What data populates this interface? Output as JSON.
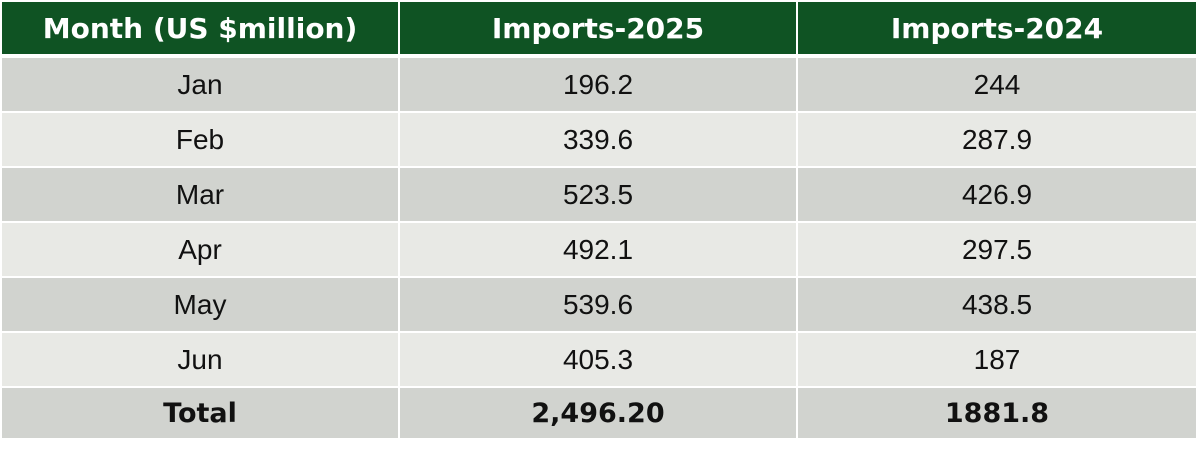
{
  "table": {
    "headers": [
      "Month (US $million)",
      "Imports-2025",
      "Imports-2024"
    ],
    "rows": [
      {
        "month": "Jan",
        "imports_2025": "196.2",
        "imports_2024": "244"
      },
      {
        "month": "Feb",
        "imports_2025": "339.6",
        "imports_2024": "287.9"
      },
      {
        "month": "Mar",
        "imports_2025": "523.5",
        "imports_2024": "426.9"
      },
      {
        "month": "Apr",
        "imports_2025": "492.1",
        "imports_2024": "297.5"
      },
      {
        "month": "May",
        "imports_2025": "539.6",
        "imports_2024": "438.5"
      },
      {
        "month": "Jun",
        "imports_2025": "405.3",
        "imports_2024": "187"
      }
    ],
    "total": {
      "label": "Total",
      "imports_2025": "2,496.20",
      "imports_2024": "1881.8"
    }
  },
  "colors": {
    "header_bg": "#0f5323",
    "header_text": "#ffffff",
    "row_dark": "#d1d3cf",
    "row_light": "#e8e9e5"
  }
}
